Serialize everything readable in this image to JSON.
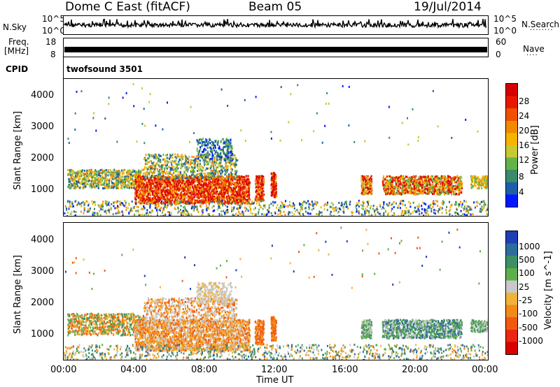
{
  "header": {
    "title_left": "Dome C East (fitACF)",
    "title_center": "Beam 05",
    "title_right": "19/Jul/2014"
  },
  "nsky": {
    "label": "N.Sky",
    "tick_top": "10^5",
    "tick_bottom": "10^0",
    "right_label": "N.Search",
    "right_tick_top": "10^5",
    "right_tick_bottom": "10^0"
  },
  "freq": {
    "label_line1": "Freq.",
    "label_line2": "[MHz]",
    "tick_top": "18",
    "tick_bottom": "8",
    "right_label": "Nave",
    "right_tick_top": "60",
    "right_tick_bottom": "0"
  },
  "cpid": {
    "label": "CPID",
    "value": "twofsound 3501"
  },
  "chart_data": [
    {
      "type": "heatmap",
      "name": "power",
      "ylabel": "Slant Range [km]",
      "yticks": [
        "1000",
        "2000",
        "3000",
        "4000"
      ],
      "ylim": [
        180,
        4600
      ],
      "colorbar": {
        "label": "Power [dB]",
        "ticks": [
          "4",
          "8",
          "12",
          "16",
          "20",
          "24",
          "28"
        ],
        "colors": [
          "#0018ff",
          "#1c5ea8",
          "#3b8a6a",
          "#66b24a",
          "#c8c832",
          "#f4b400",
          "#f28a00",
          "#f05000",
          "#e81800",
          "#d40000"
        ]
      }
    },
    {
      "type": "heatmap",
      "name": "velocity",
      "ylabel": "Slant Range [km]",
      "yticks": [
        "1000",
        "2000",
        "3000",
        "4000"
      ],
      "ylim": [
        180,
        4600
      ],
      "colorbar": {
        "label": "Velocity [m s^-1]",
        "ticks": [
          "1000",
          "500",
          "100",
          "25",
          "-25",
          "-100",
          "-500",
          "-1000"
        ],
        "colors": [
          "#1f3fb5",
          "#2e6c9c",
          "#3f8f66",
          "#5fae4c",
          "#c8c8c8",
          "#f2b23a",
          "#f28a1a",
          "#f05a10",
          "#e82810",
          "#d80000"
        ]
      }
    }
  ],
  "xaxis": {
    "label": "Time UT",
    "ticks": [
      "00:00",
      "04:00",
      "08:00",
      "12:00",
      "16:00",
      "20:00",
      "00:00"
    ]
  }
}
